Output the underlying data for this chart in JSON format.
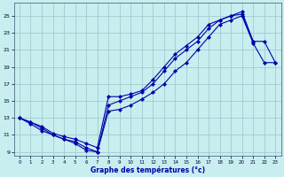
{
  "xlabel": "Graphe des températures (°c)",
  "x_ticks": [
    0,
    1,
    2,
    3,
    4,
    5,
    6,
    7,
    8,
    9,
    10,
    11,
    12,
    13,
    14,
    15,
    16,
    17,
    18,
    19,
    20,
    21,
    22,
    23
  ],
  "ylim": [
    8.5,
    26.5
  ],
  "xlim": [
    -0.5,
    23.5
  ],
  "yticks": [
    9,
    11,
    13,
    15,
    17,
    19,
    21,
    23,
    25
  ],
  "bg_color": "#c8eef0",
  "line_color": "#0000aa",
  "grid_color": "#a0ccd0",
  "line_upper_x": [
    0,
    1,
    2,
    3,
    4,
    5,
    6,
    7,
    8,
    9,
    10,
    11,
    12,
    13,
    14,
    15,
    16,
    17,
    18,
    19,
    20,
    21
  ],
  "line_upper_y": [
    13.0,
    12.5,
    12.0,
    11.2,
    10.8,
    10.5,
    10.0,
    9.5,
    15.5,
    15.5,
    15.8,
    16.2,
    17.5,
    19.0,
    20.5,
    21.5,
    22.5,
    24.0,
    24.5,
    25.0,
    25.5,
    22.0
  ],
  "line_mid_x": [
    0,
    1,
    2,
    3,
    4,
    5,
    6,
    7,
    8,
    9,
    10,
    11,
    12,
    13,
    14,
    15,
    16,
    17,
    18,
    19,
    20,
    21,
    22,
    23
  ],
  "line_mid_y": [
    13.0,
    12.5,
    11.8,
    11.0,
    10.5,
    10.2,
    9.5,
    9.0,
    14.5,
    15.0,
    15.5,
    16.0,
    17.0,
    18.5,
    20.0,
    21.0,
    22.0,
    23.5,
    24.5,
    25.0,
    25.2,
    22.0,
    22.0,
    19.5
  ],
  "line_lower_x": [
    0,
    1,
    2,
    3,
    4,
    5,
    6,
    7,
    8,
    9,
    10,
    11,
    12,
    13,
    14,
    15,
    16,
    17,
    18,
    19,
    20,
    21,
    22,
    23
  ],
  "line_lower_y": [
    13.0,
    12.3,
    11.5,
    11.0,
    10.5,
    10.0,
    9.2,
    9.0,
    13.8,
    14.0,
    14.5,
    15.2,
    16.0,
    17.0,
    18.5,
    19.5,
    21.0,
    22.5,
    24.0,
    24.5,
    25.0,
    21.8,
    19.5,
    19.5
  ]
}
